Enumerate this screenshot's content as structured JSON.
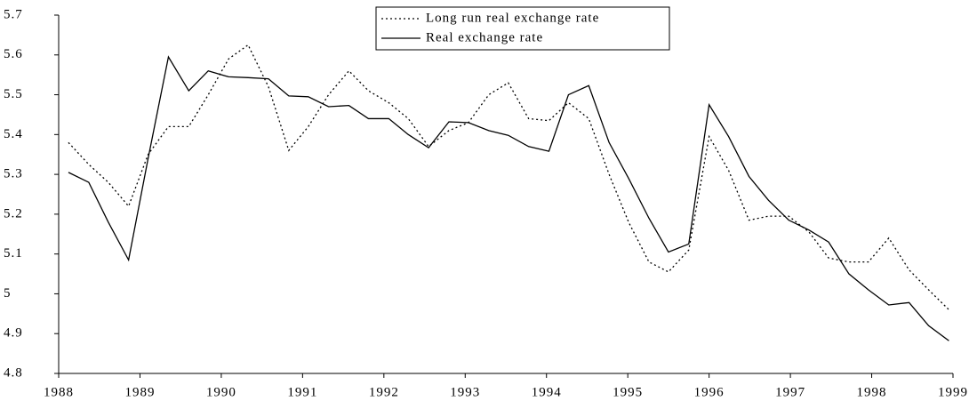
{
  "chart_data": {
    "type": "line",
    "x": [
      1988.12,
      1988.37,
      1988.61,
      1988.86,
      1989.1,
      1989.35,
      1989.6,
      1989.84,
      1990.09,
      1990.33,
      1990.58,
      1990.83,
      1991.07,
      1991.32,
      1991.57,
      1991.81,
      1992.06,
      1992.3,
      1992.55,
      1992.8,
      1993.04,
      1993.29,
      1993.53,
      1993.78,
      1994.03,
      1994.27,
      1994.52,
      1994.77,
      1995.01,
      1995.26,
      1995.5,
      1995.75,
      1996.0,
      1996.24,
      1996.49,
      1996.73,
      1996.98,
      1997.23,
      1997.47,
      1997.72,
      1997.96,
      1998.21,
      1998.46,
      1998.7,
      1998.95
    ],
    "series": [
      {
        "name": "Long run real exchange rate",
        "color": "#000000",
        "style": "dotted",
        "values": [
          5.38,
          5.325,
          5.28,
          5.22,
          5.35,
          5.42,
          5.42,
          5.5,
          5.59,
          5.625,
          5.52,
          5.36,
          5.42,
          5.5,
          5.56,
          5.51,
          5.48,
          5.44,
          5.37,
          5.41,
          5.43,
          5.5,
          5.53,
          5.44,
          5.435,
          5.48,
          5.44,
          5.3,
          5.18,
          5.08,
          5.055,
          5.11,
          5.395,
          5.31,
          5.185,
          5.195,
          5.195,
          5.155,
          5.09,
          5.08,
          5.08,
          5.14,
          5.06,
          5.01,
          4.96
        ]
      },
      {
        "name": "Real exchange rate",
        "color": "#000000",
        "style": "solid",
        "values": [
          5.305,
          5.28,
          5.18,
          5.085,
          5.34,
          5.595,
          5.51,
          5.56,
          5.545,
          5.543,
          5.54,
          5.497,
          5.495,
          5.47,
          5.473,
          5.44,
          5.44,
          5.4,
          5.367,
          5.432,
          5.43,
          5.41,
          5.398,
          5.37,
          5.358,
          5.5,
          5.523,
          5.38,
          5.29,
          5.19,
          5.105,
          5.125,
          5.475,
          5.395,
          5.295,
          5.235,
          5.185,
          5.16,
          5.13,
          5.05,
          5.01,
          4.972,
          4.978,
          4.92,
          4.882
        ]
      }
    ],
    "xlim": [
      1988,
      1999
    ],
    "xticks": [
      1988,
      1989,
      1990,
      1991,
      1992,
      1993,
      1994,
      1995,
      1996,
      1997,
      1998,
      1999
    ],
    "ylim": [
      4.8,
      5.7
    ],
    "yticks": [
      4.8,
      4.9,
      5,
      5.1,
      5.2,
      5.3,
      5.4,
      5.5,
      5.6,
      5.7
    ],
    "grid": false,
    "legend": "top"
  }
}
